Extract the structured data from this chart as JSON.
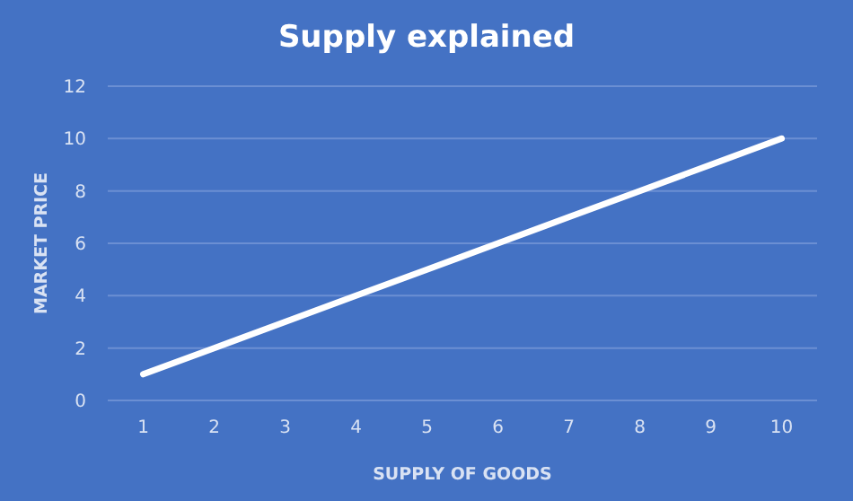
{
  "chart_data": {
    "type": "line",
    "title": "Supply explained",
    "xlabel": "SUPPLY OF GOODS",
    "ylabel": "MARKET PRICE",
    "categories": [
      "1",
      "2",
      "3",
      "4",
      "5",
      "6",
      "7",
      "8",
      "9",
      "10"
    ],
    "series": [
      {
        "color": "#ffffff",
        "values": [
          1,
          2,
          3,
          4,
          5,
          6,
          7,
          8,
          9,
          10
        ]
      }
    ],
    "ylim": [
      0,
      12
    ],
    "yticks": [
      0,
      2,
      4,
      6,
      8,
      10,
      12
    ],
    "grid": "y",
    "marker": "none",
    "line_style": "solid"
  }
}
